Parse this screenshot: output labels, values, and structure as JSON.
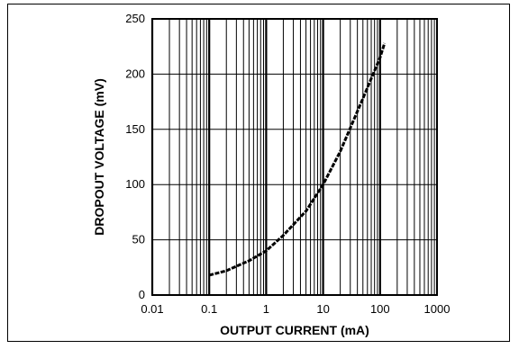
{
  "chart_data": {
    "type": "line",
    "title": "",
    "xlabel": "OUTPUT CURRENT (mA)",
    "ylabel": "DROPOUT VOLTAGE (mV)",
    "x_scale": "log",
    "xlim": [
      0.01,
      1000
    ],
    "ylim": [
      0,
      250
    ],
    "x_ticks": [
      "0.01",
      "0.1",
      "1",
      "10",
      "100",
      "1000"
    ],
    "y_ticks": [
      "0",
      "50",
      "100",
      "150",
      "200",
      "250"
    ],
    "grid": true,
    "series": [
      {
        "color": "#000000",
        "x": [
          0.1,
          0.2,
          0.5,
          1,
          2,
          5,
          10,
          20,
          50,
          100,
          120
        ],
        "y": [
          18,
          22,
          31,
          40,
          54,
          76,
          100,
          130,
          178,
          215,
          228
        ]
      }
    ]
  }
}
